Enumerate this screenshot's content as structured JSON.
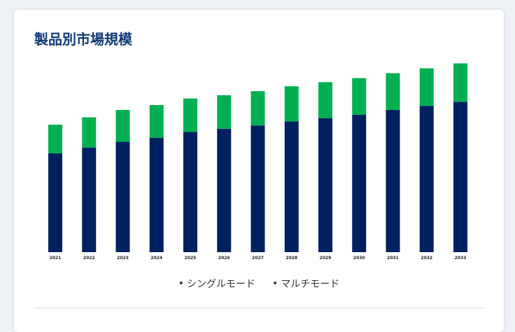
{
  "page": {
    "title": "製品別市場規模"
  },
  "colors": {
    "single_mode": "#002060",
    "multi_mode": "#00b050",
    "background": "#ffffff"
  },
  "chart_data": {
    "type": "bar",
    "stacked": true,
    "categories": [
      "2021",
      "2022",
      "2023",
      "2024",
      "2025",
      "2026",
      "2027",
      "2028",
      "2029",
      "2030",
      "2031",
      "2032",
      "2033"
    ],
    "series": [
      {
        "name": "シングルモード",
        "values": [
          121,
          128,
          135,
          140,
          147,
          151,
          155,
          160,
          164,
          168,
          174,
          179,
          184
        ]
      },
      {
        "name": "マルチモード",
        "values": [
          35,
          37,
          39,
          40,
          41,
          41,
          42,
          43,
          44,
          45,
          45,
          46,
          47
        ]
      }
    ],
    "ylim": [
      0,
      240
    ],
    "grid": false,
    "legend_position": "bottom"
  }
}
